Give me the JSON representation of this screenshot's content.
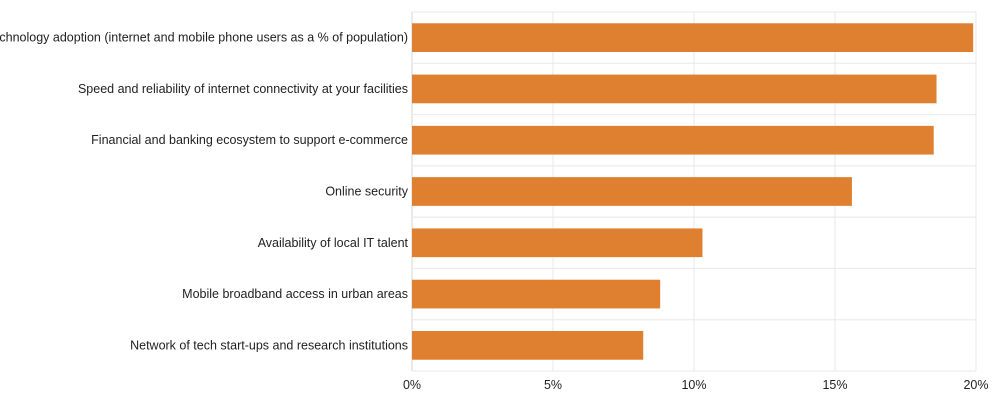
{
  "chart_data": {
    "type": "bar",
    "orientation": "horizontal",
    "title": "",
    "xlabel": "",
    "ylabel": "",
    "categories": [
      "Technology adoption (internet and mobile phone users as a % of population)",
      "Speed and reliability of internet connectivity at your facilities",
      "Financial and banking ecosystem to support e-commerce",
      "Online security",
      "Availability of local IT talent",
      "Mobile broadband access in urban areas",
      "Network of tech start-ups and research institutions"
    ],
    "values": [
      19.9,
      18.6,
      18.5,
      15.6,
      10.3,
      8.8,
      8.2
    ],
    "xlim": [
      0,
      20
    ],
    "ticks": [
      0,
      5,
      10,
      15,
      20
    ],
    "tick_labels": [
      "0%",
      "5%",
      "10%",
      "15%",
      "20%"
    ],
    "value_unit": "%",
    "grid": true,
    "bar_color": "#df7f30"
  }
}
